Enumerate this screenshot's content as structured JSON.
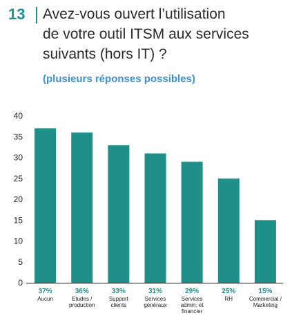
{
  "question": {
    "number": "13",
    "title_lines": [
      "Avez-vous ouvert l’utilisation",
      "de votre outil ITSM aux services",
      "suivants (hors IT) ?"
    ],
    "subtitle": "(plusieurs réponses possibles)"
  },
  "colors": {
    "accent": "#1f8f8a",
    "bar": "#1f8f8a",
    "subtitle": "#3d8fd1",
    "text": "#1a1a1a"
  },
  "chart_data": {
    "type": "bar",
    "title": "",
    "xlabel": "",
    "ylabel": "",
    "ylim": [
      0,
      40
    ],
    "yticks": [
      0,
      5,
      10,
      15,
      20,
      25,
      30,
      35,
      40
    ],
    "grid": false,
    "categories": [
      [
        "Aucun"
      ],
      [
        "Etudes /",
        "production"
      ],
      [
        "Support",
        "clients"
      ],
      [
        "Services",
        "généraux"
      ],
      [
        "Services",
        "admin. et",
        "financier"
      ],
      [
        "RH"
      ],
      [
        "Commercial /",
        "Marketing"
      ]
    ],
    "values": [
      37,
      36,
      33,
      31,
      29,
      25,
      15
    ],
    "data_labels": [
      "37%",
      "36%",
      "33%",
      "31%",
      "29%",
      "25%",
      "15%"
    ]
  }
}
